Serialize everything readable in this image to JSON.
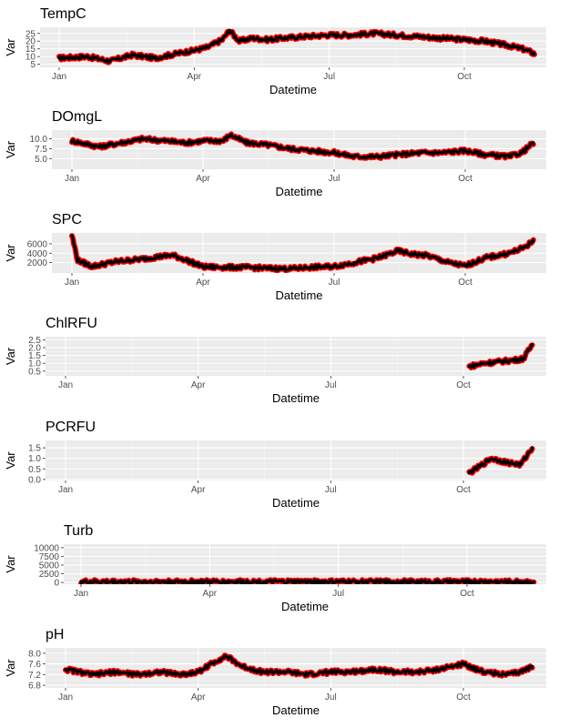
{
  "chart_data": [
    {
      "type": "line",
      "title": "TempC",
      "xlabel": "Datetime",
      "ylabel": "Var",
      "x_ticks": [
        "Jan",
        "Apr",
        "Jul",
        "Oct"
      ],
      "y_ticks": [
        "5",
        "10",
        "15",
        "20",
        "25"
      ],
      "ylim": [
        3,
        29
      ],
      "x": [
        "Jan 1",
        "Jan 20",
        "Feb 5",
        "Feb 20",
        "Mar 5",
        "Mar 20",
        "Apr 1",
        "Apr 10",
        "Apr 20",
        "Apr 25",
        "May 1",
        "May 10",
        "May 20",
        "Jun 1",
        "Jun 15",
        "Jul 1",
        "Jul 15",
        "Aug 1",
        "Aug 15",
        "Sep 1",
        "Sep 15",
        "Oct 1",
        "Oct 15",
        "Nov 1",
        "Nov 10",
        "Nov 18"
      ],
      "series": [
        {
          "values": [
            9,
            10,
            7,
            11,
            9,
            12,
            14,
            16,
            21,
            27,
            20,
            22,
            21,
            22,
            23,
            24,
            24,
            25,
            24,
            23,
            22,
            21,
            20,
            17,
            15,
            12
          ]
        }
      ]
    },
    {
      "type": "line",
      "title": "DOmgL",
      "xlabel": "Datetime",
      "ylabel": "Var",
      "x_ticks": [
        "Jan",
        "Apr",
        "Jul",
        "Oct"
      ],
      "y_ticks": [
        "5.0",
        "7.5",
        "10.0"
      ],
      "ylim": [
        2.3,
        12.2
      ],
      "x": [
        "Jan 1",
        "Jan 20",
        "Feb 5",
        "Feb 20",
        "Mar 5",
        "Mar 20",
        "Apr 1",
        "Apr 15",
        "Apr 20",
        "May 1",
        "May 15",
        "Jun 1",
        "Jun 15",
        "Jul 1",
        "Jul 15",
        "Aug 1",
        "Aug 15",
        "Sep 1",
        "Sep 15",
        "Oct 1",
        "Oct 15",
        "Nov 1",
        "Nov 10",
        "Nov 18"
      ],
      "series": [
        {
          "values": [
            9.5,
            8.0,
            9.0,
            10.0,
            9.5,
            9.0,
            9.5,
            9.5,
            11.0,
            9.0,
            8.5,
            7.5,
            7.0,
            6.5,
            5.5,
            5.5,
            6.0,
            6.5,
            6.5,
            7.0,
            6.0,
            5.5,
            6.5,
            9.0
          ]
        }
      ]
    },
    {
      "type": "line",
      "title": "SPC",
      "xlabel": "Datetime",
      "ylabel": "Var",
      "x_ticks": [
        "Jan",
        "Apr",
        "Jul",
        "Oct"
      ],
      "y_ticks": [
        "2000",
        "4000",
        "6000"
      ],
      "ylim": [
        -200,
        8300
      ],
      "x": [
        "Jan 1",
        "Jan 5",
        "Jan 15",
        "Feb 1",
        "Feb 20",
        "Mar 10",
        "Mar 20",
        "Apr 1",
        "Apr 15",
        "May 1",
        "May 15",
        "Jun 1",
        "Jun 15",
        "Jul 1",
        "Jul 15",
        "Aug 1",
        "Aug 15",
        "Aug 25",
        "Sep 5",
        "Sep 20",
        "Oct 1",
        "Oct 15",
        "Nov 1",
        "Nov 10",
        "Nov 18"
      ],
      "series": [
        {
          "values": [
            7800,
            2500,
            1200,
            2200,
            2800,
            3600,
            2500,
            1100,
            1000,
            1000,
            800,
            700,
            1000,
            1200,
            2000,
            3000,
            4500,
            3800,
            3500,
            2000,
            1300,
            3000,
            4000,
            5000,
            6500
          ]
        }
      ]
    },
    {
      "type": "line",
      "title": "ChlRFU",
      "xlabel": "Datetime",
      "ylabel": "Var",
      "x_ticks": [
        "Jan",
        "Apr",
        "Jul",
        "Oct"
      ],
      "y_ticks": [
        "0.5",
        "1.0",
        "1.5",
        "2.0",
        "2.5"
      ],
      "ylim": [
        0.2,
        2.7
      ],
      "x": [
        "Oct 5",
        "Oct 15",
        "Oct 25",
        "Nov 5",
        "Nov 12",
        "Nov 18"
      ],
      "series": [
        {
          "values": [
            0.8,
            1.0,
            1.1,
            1.2,
            1.3,
            2.2
          ]
        }
      ]
    },
    {
      "type": "line",
      "title": "PCRFU",
      "xlabel": "Datetime",
      "ylabel": "Var",
      "x_ticks": [
        "Jan",
        "Apr",
        "Jul",
        "Oct"
      ],
      "y_ticks": [
        "0.0",
        "0.5",
        "1.0",
        "1.5"
      ],
      "ylim": [
        -0.05,
        1.85
      ],
      "x": [
        "Oct 5",
        "Oct 12",
        "Oct 20",
        "Nov 1",
        "Nov 10",
        "Nov 18"
      ],
      "series": [
        {
          "values": [
            0.3,
            0.6,
            1.0,
            0.8,
            0.7,
            1.5
          ]
        }
      ]
    },
    {
      "type": "line",
      "title": "Turb",
      "xlabel": "Datetime",
      "ylabel": "Var",
      "x_ticks": [
        "Jan",
        "Apr",
        "Jul",
        "Oct"
      ],
      "y_ticks": [
        "0",
        "2500",
        "5000",
        "7500",
        "10000"
      ],
      "ylim": [
        -500,
        11000
      ],
      "x": [
        "Jan 1",
        "Feb 1",
        "Mar 1",
        "Apr 1",
        "May 1",
        "Jun 1",
        "Jul 1",
        "Jul 15",
        "Aug 15",
        "Sep 1",
        "Oct 1",
        "Nov 1",
        "Nov 18"
      ],
      "series": [
        {
          "values": [
            200,
            200,
            200,
            200,
            200,
            200,
            200,
            200,
            200,
            200,
            200,
            200,
            200
          ]
        }
      ]
    },
    {
      "type": "line",
      "title": "pH",
      "xlabel": "Datetime",
      "ylabel": "Var",
      "x_ticks": [
        "Jan",
        "Apr",
        "Jul",
        "Oct"
      ],
      "y_ticks": [
        "6.8",
        "7.2",
        "7.6",
        "8.0"
      ],
      "ylim": [
        6.7,
        8.2
      ],
      "x": [
        "Jan 1",
        "Jan 20",
        "Feb 5",
        "Feb 20",
        "Mar 5",
        "Mar 20",
        "Apr 1",
        "Apr 10",
        "Apr 20",
        "May 1",
        "May 15",
        "Jun 1",
        "Jun 15",
        "Jul 1",
        "Jul 15",
        "Aug 1",
        "Aug 15",
        "Sep 1",
        "Sep 15",
        "Oct 1",
        "Oct 15",
        "Nov 1",
        "Nov 10",
        "Nov 18"
      ],
      "series": [
        {
          "values": [
            7.4,
            7.2,
            7.3,
            7.2,
            7.3,
            7.2,
            7.3,
            7.6,
            7.9,
            7.5,
            7.3,
            7.3,
            7.2,
            7.3,
            7.3,
            7.4,
            7.3,
            7.3,
            7.4,
            7.6,
            7.3,
            7.2,
            7.3,
            7.5
          ]
        }
      ]
    }
  ],
  "colors": {
    "panel_bg": "#ebebeb",
    "grid_major": "#ffffff",
    "grid_minor": "#f5f5f5",
    "outer_line": "#ff0000",
    "inner_line": "#000000",
    "tick_text": "#4d4d4d"
  }
}
